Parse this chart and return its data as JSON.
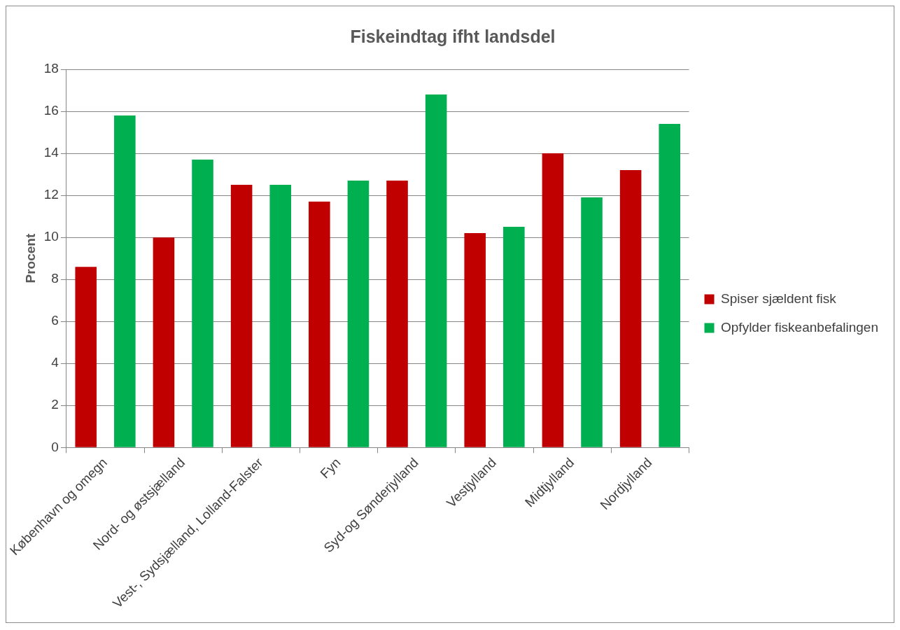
{
  "chart_data": {
    "type": "bar",
    "title": "Fiskeindtag ifht landsdel",
    "ylabel": "Procent",
    "categories": [
      "København og omegn",
      "Nord- og østsjælland",
      "Vest-, Sydsjælland, Lolland-Falster",
      "Fyn",
      "Syd-og Sønderjylland",
      "Vestjylland",
      "Midtjylland",
      "Nordjylland"
    ],
    "series": [
      {
        "name": "Spiser sjældent fisk",
        "color": "#c00000",
        "values": [
          8.6,
          10.0,
          12.5,
          11.7,
          12.7,
          10.2,
          14.0,
          13.2
        ]
      },
      {
        "name": "Opfylder fiskeanbefalingen",
        "color": "#00b050",
        "values": [
          15.8,
          13.7,
          12.5,
          12.7,
          16.8,
          10.5,
          11.9,
          15.4
        ]
      }
    ],
    "ylim": [
      0,
      18
    ],
    "yticks": [
      0,
      2,
      4,
      6,
      8,
      10,
      12,
      14,
      16,
      18
    ],
    "grid": "y",
    "legend": "right"
  }
}
